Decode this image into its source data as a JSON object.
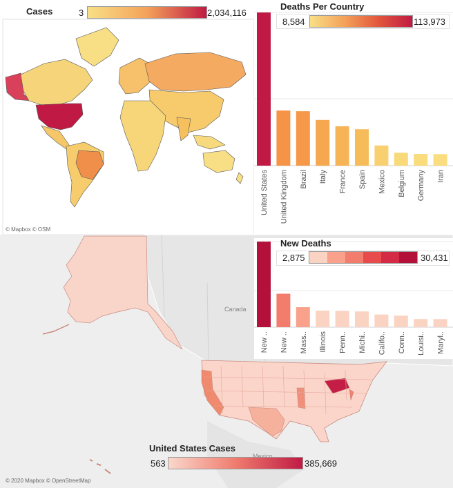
{
  "world_map": {
    "title": "Cases",
    "legend_min": "3",
    "legend_max": "2,034,116",
    "credit": "© Mapbox © OSM",
    "colors": {
      "low": "#f8df85",
      "mid": "#f4a25a",
      "high": "#c01a44"
    }
  },
  "us_map": {
    "title": "United States Cases",
    "legend_min": "563",
    "legend_max": "385,669",
    "credit": "© 2020 Mapbox © OpenStreetMap",
    "label_canada": "Canada",
    "label_mexico": "Mexico",
    "colors": {
      "low": "#fad7cc",
      "high": "#c01a44"
    }
  },
  "deaths_legend": {
    "title": "Deaths Per Country",
    "min": "8,584",
    "max": "113,973"
  },
  "new_deaths_legend": {
    "title": "New Deaths",
    "min": "2,875",
    "max": "30,431",
    "steps": [
      "#fbd3c3",
      "#f9a18b",
      "#f27d6c",
      "#e84b4b",
      "#d42a45",
      "#b3113a"
    ]
  },
  "chart_data": [
    {
      "type": "bar",
      "title": "Deaths Per Country",
      "categories": [
        "United States",
        "United Kingdom",
        "Brazil",
        "Italy",
        "France",
        "Spain",
        "Mexico",
        "Belgium",
        "Germany",
        "Iran"
      ],
      "values": [
        113973,
        41000,
        40500,
        34000,
        29300,
        27100,
        15000,
        9600,
        8700,
        8584
      ],
      "colors": [
        "#c01a44",
        "#f59446",
        "#f59849",
        "#f6a850",
        "#f7b457",
        "#f7bc5a",
        "#f8d070",
        "#f9da7a",
        "#f9dc7c",
        "#f9dd7e"
      ],
      "ylim": [
        0,
        114000
      ],
      "grid": true
    },
    {
      "type": "bar",
      "title": "New Deaths",
      "categories": [
        "New ..",
        "New ..",
        "Mass..",
        "Illinois",
        "Penn..",
        "Michi..",
        "Califo..",
        "Conn..",
        "Louisi..",
        "Maryl.."
      ],
      "values": [
        30431,
        11900,
        7100,
        5900,
        5800,
        5600,
        4500,
        4100,
        2900,
        2875
      ],
      "colors": [
        "#b3113a",
        "#f27d6c",
        "#f9a18b",
        "#fbd3c3",
        "#fbd3c3",
        "#fbd3c3",
        "#fbd3c3",
        "#fbd3c3",
        "#fbd3c3",
        "#fbd3c3"
      ],
      "ylim": [
        0,
        30431
      ],
      "grid": true
    }
  ]
}
